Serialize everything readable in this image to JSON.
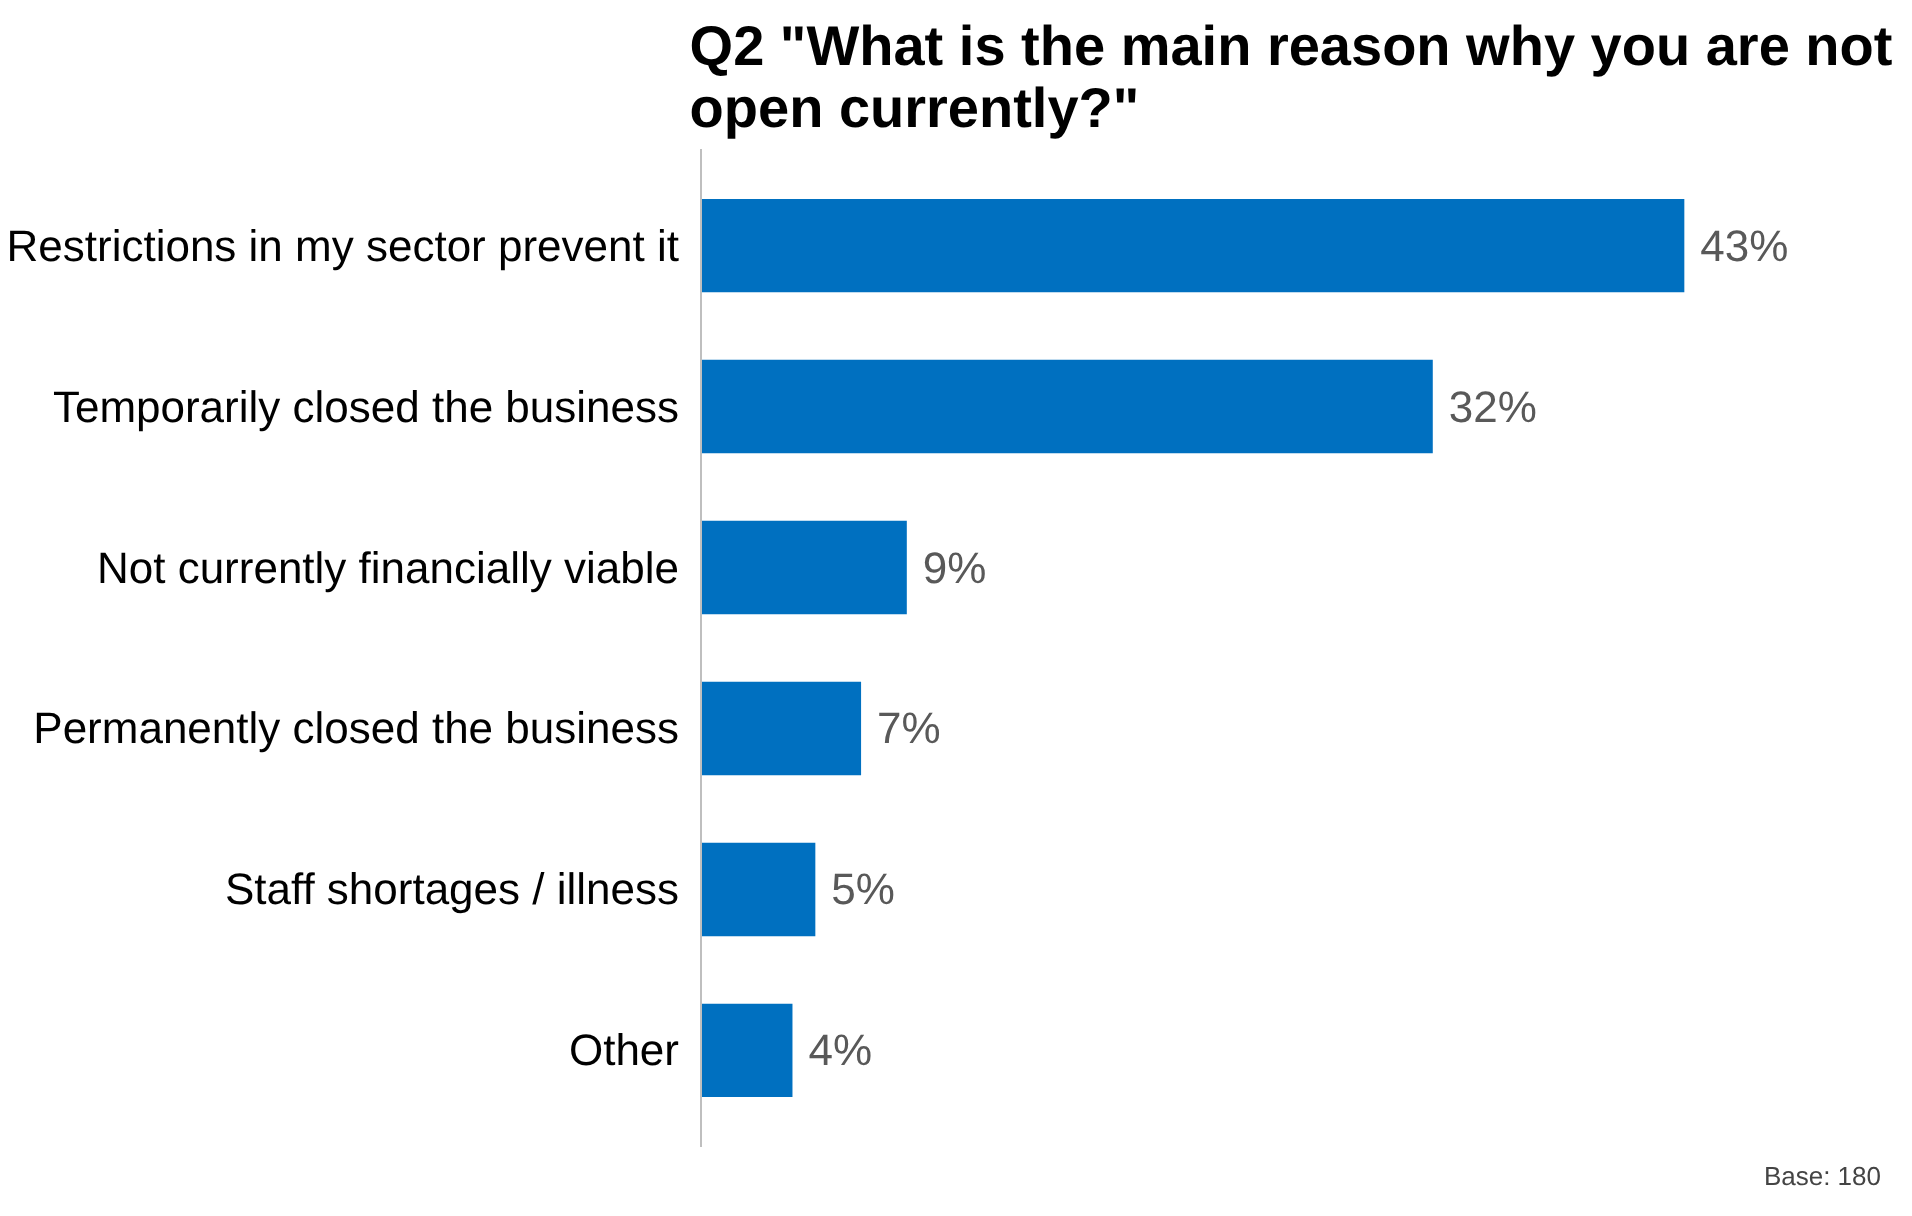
{
  "chart_data": {
    "type": "bar",
    "orientation": "horizontal",
    "title": "Q2 \"What is the main reason why you are not open currently?\"",
    "categories": [
      "Restrictions in my sector prevent it",
      "Temporarily closed the business",
      "Not currently financially viable",
      "Permanently closed the business",
      "Staff shortages / illness",
      "Other"
    ],
    "values": [
      43,
      32,
      9,
      7,
      5,
      4
    ],
    "value_labels": [
      "43%",
      "32%",
      "9%",
      "7%",
      "5%",
      "4%"
    ],
    "color": "#0070c0",
    "annotations": [
      "Base: 180"
    ],
    "grid": false
  }
}
